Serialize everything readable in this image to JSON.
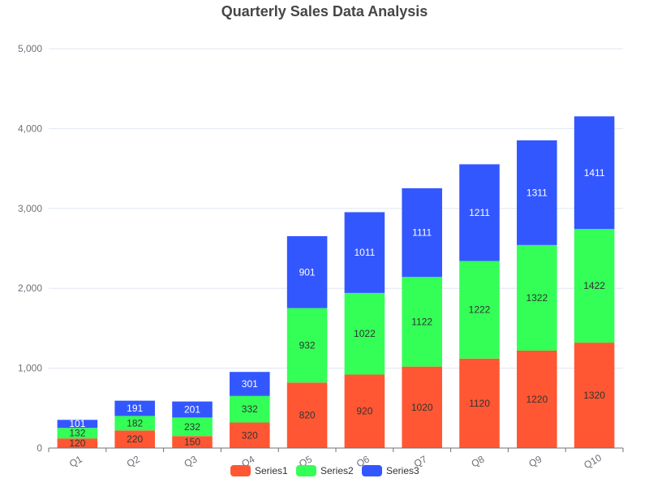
{
  "chart_data": {
    "type": "bar",
    "stacked": true,
    "title": "Quarterly Sales Data Analysis",
    "categories": [
      "Q1",
      "Q2",
      "Q3",
      "Q4",
      "Q5",
      "Q6",
      "Q7",
      "Q8",
      "Q9",
      "Q10"
    ],
    "series": [
      {
        "name": "Series1",
        "color": "#ff5733",
        "label_color": "#333333",
        "values": [
          120,
          220,
          150,
          320,
          820,
          920,
          1020,
          1120,
          1220,
          1320
        ]
      },
      {
        "name": "Series2",
        "color": "#33ff57",
        "label_color": "#333333",
        "values": [
          132,
          182,
          232,
          332,
          932,
          1022,
          1122,
          1222,
          1322,
          1422
        ]
      },
      {
        "name": "Series3",
        "color": "#3357ff",
        "label_color": "#ffffff",
        "values": [
          101,
          191,
          201,
          301,
          901,
          1011,
          1111,
          1211,
          1311,
          1411
        ]
      }
    ],
    "ylim": [
      0,
      5000
    ],
    "yticks": [
      0,
      1000,
      2000,
      3000,
      4000,
      5000
    ],
    "ytick_labels": [
      "0",
      "1,000",
      "2,000",
      "3,000",
      "4,000",
      "5,000"
    ],
    "grid": true,
    "legend_position": "bottom"
  }
}
